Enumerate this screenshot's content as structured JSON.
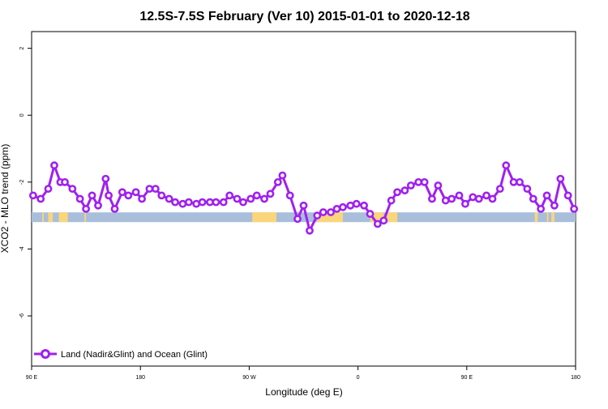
{
  "chart_data": {
    "type": "line",
    "title": "12.5S-7.5S February (Ver 10)   2015-01-01 to 2020-12-18",
    "xlabel": "Longitude (deg E)",
    "ylabel": "XCO2 - MLO trend (ppm)",
    "xlim": [
      90,
      450
    ],
    "ylim": [
      -7.5,
      2.5
    ],
    "x_ticks": [
      90,
      162,
      234,
      306,
      378,
      450
    ],
    "x_tick_labels": [
      "90 E",
      "180",
      "90 W",
      "0",
      "90 E",
      "180"
    ],
    "y_ticks": [
      2,
      0,
      -2,
      -4,
      -6
    ],
    "y_tick_labels": [
      "2",
      "0",
      "-2",
      "-4",
      "-6"
    ],
    "grid": false,
    "legend": "bottom-left",
    "series": [
      {
        "name": "Land (Nadir&Glint) and Ocean (Glint)",
        "color": "#a020f0",
        "x": [
          91,
          96,
          101,
          105,
          109,
          112,
          117,
          122,
          126,
          130,
          134,
          139,
          141,
          145,
          150,
          154,
          159,
          163,
          168,
          172,
          176,
          181,
          185,
          190,
          194,
          199,
          203,
          208,
          212,
          217,
          221,
          226,
          230,
          235,
          239,
          244,
          248,
          253,
          256,
          261,
          266,
          270,
          274,
          279,
          283,
          288,
          292,
          296,
          301,
          305,
          310,
          314,
          319,
          323,
          328,
          332,
          337,
          341,
          346,
          350,
          355,
          359,
          364,
          368,
          373,
          377,
          382,
          386,
          391,
          395,
          400,
          404,
          409,
          413,
          418,
          422,
          427,
          431,
          436,
          440,
          445,
          449
        ],
        "y": [
          -2.4,
          -2.5,
          -2.2,
          -1.5,
          -2.0,
          -2.0,
          -2.2,
          -2.5,
          -2.8,
          -2.4,
          -2.7,
          -1.9,
          -2.4,
          -2.8,
          -2.3,
          -2.4,
          -2.3,
          -2.5,
          -2.2,
          -2.2,
          -2.4,
          -2.5,
          -2.6,
          -2.65,
          -2.6,
          -2.65,
          -2.6,
          -2.6,
          -2.6,
          -2.6,
          -2.4,
          -2.5,
          -2.6,
          -2.5,
          -2.4,
          -2.5,
          -2.35,
          -2.0,
          -1.8,
          -2.4,
          -3.1,
          -2.7,
          -3.45,
          -3.0,
          -2.9,
          -2.9,
          -2.8,
          -2.75,
          -2.7,
          -2.65,
          -2.7,
          -2.95,
          -3.25,
          -3.15,
          -2.55,
          -2.3,
          -2.25,
          -2.1,
          -2.0,
          -2.0,
          -2.5,
          -2.1,
          -2.55,
          -2.5,
          -2.4,
          -2.65,
          -2.45,
          -2.5,
          -2.4,
          -2.5,
          -2.2,
          -1.5,
          -2.0,
          -2.0,
          -2.2,
          -2.5,
          -2.8,
          -2.4,
          -2.7,
          -1.9,
          -2.4,
          -2.8
        ]
      }
    ],
    "surface_bar": {
      "y": -3.05,
      "ocean_color": "#a8bedb",
      "land_color": "#fbd57a",
      "land_ranges": [
        [
          97,
          98
        ],
        [
          101,
          104
        ],
        [
          108,
          114
        ],
        [
          125,
          126
        ],
        [
          236,
          252
        ],
        [
          279,
          296
        ],
        [
          314,
          323
        ],
        [
          325,
          332
        ],
        [
          423,
          425
        ],
        [
          431,
          432
        ],
        [
          434,
          436
        ]
      ]
    }
  }
}
